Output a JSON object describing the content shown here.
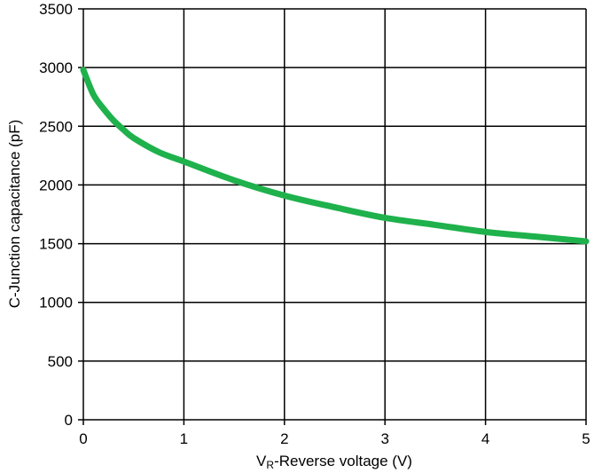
{
  "chart_data": {
    "type": "line",
    "title": "",
    "xlabel": {
      "prefix": "V",
      "subscript": "R",
      "text": "-Reverse voltage (V)"
    },
    "ylabel": "C-Junction capacitance (pF)",
    "xlim": [
      0,
      5
    ],
    "ylim": [
      0,
      3500
    ],
    "x_ticks": [
      "0",
      "1",
      "2",
      "3",
      "4",
      "5"
    ],
    "y_ticks": [
      "0",
      "500",
      "1000",
      "1500",
      "2000",
      "2500",
      "3000",
      "3500"
    ],
    "grid": true,
    "legend": "none",
    "series": [
      {
        "color": "#1fb14c",
        "x": [
          0,
          0.1,
          0.2,
          0.3,
          0.4,
          0.5,
          0.75,
          1.0,
          1.5,
          2.0,
          2.5,
          3.0,
          3.5,
          4.0,
          4.5,
          5.0
        ],
        "y": [
          2980,
          2770,
          2650,
          2550,
          2470,
          2400,
          2280,
          2200,
          2040,
          1910,
          1810,
          1720,
          1660,
          1600,
          1560,
          1520
        ]
      }
    ]
  }
}
